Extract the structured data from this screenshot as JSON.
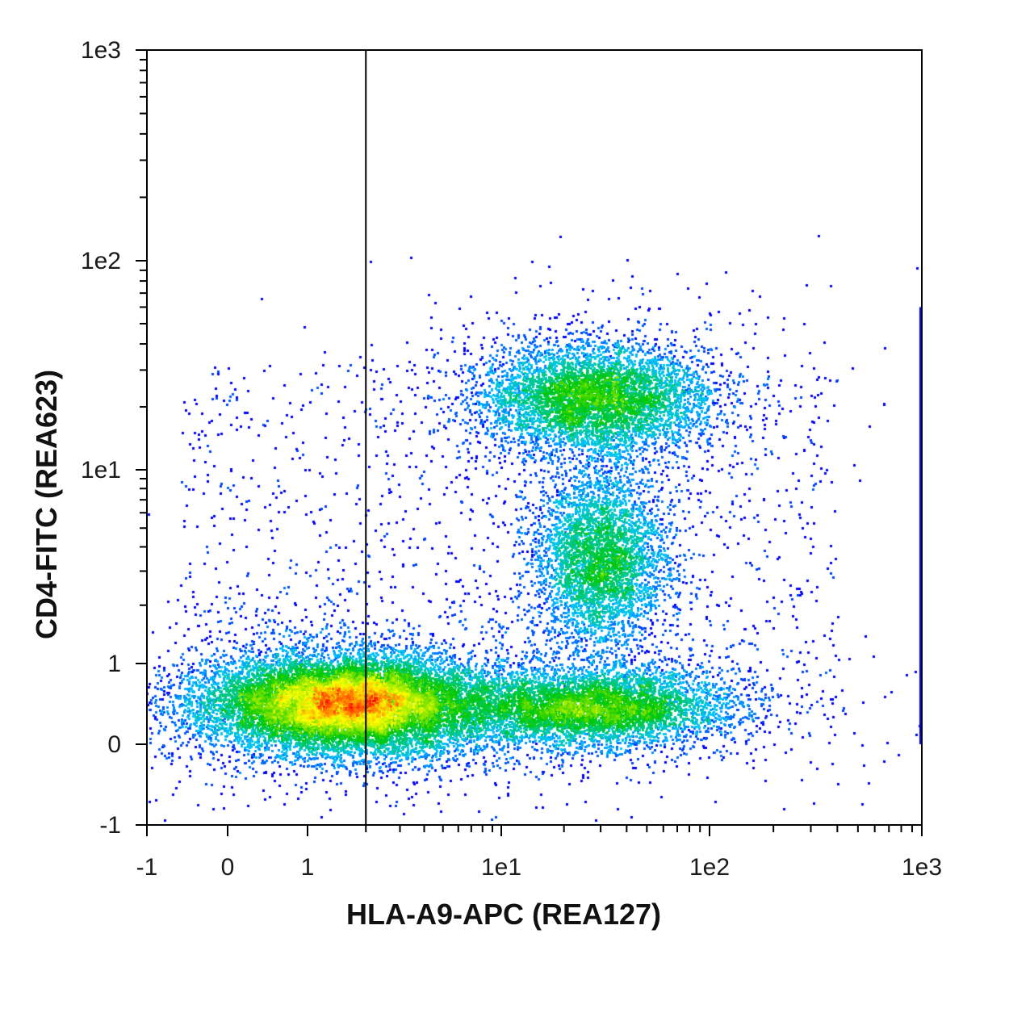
{
  "chart_data": {
    "type": "scatter",
    "xlabel": "HLA-A9-APC (REA127)",
    "ylabel": "CD4-FITC (REA623)",
    "x_scale": "biexponential",
    "y_scale": "biexponential",
    "xlim": [
      -1,
      1000
    ],
    "ylim": [
      -1,
      1000
    ],
    "x_ticks": [
      {
        "value": -1,
        "label": "-1"
      },
      {
        "value": 0,
        "label": "0"
      },
      {
        "value": 1,
        "label": "1"
      },
      {
        "value": 10,
        "label": "1e1"
      },
      {
        "value": 100,
        "label": "1e2"
      },
      {
        "value": 1000,
        "label": "1e3"
      }
    ],
    "y_ticks": [
      {
        "value": -1,
        "label": "-1"
      },
      {
        "value": 0,
        "label": "0"
      },
      {
        "value": 1,
        "label": "1"
      },
      {
        "value": 10,
        "label": "1e1"
      },
      {
        "value": 100,
        "label": "1e2"
      },
      {
        "value": 1000,
        "label": "1e3"
      }
    ],
    "gate": {
      "type": "vertical-line",
      "x": 2
    },
    "color_scale": [
      "#0000ff",
      "#00c8ff",
      "#00c800",
      "#ffff00",
      "#ff0000"
    ],
    "populations": [
      {
        "cx": 1.6,
        "cy": 0.5,
        "count": 14000
      },
      {
        "cx": 28,
        "cy": 0.45,
        "count": 5500
      },
      {
        "cx": 30,
        "cy": 3.5,
        "count": 4000
      },
      {
        "cx": 28,
        "cy": 22,
        "count": 5500
      }
    ],
    "grid": false,
    "legend": "none"
  }
}
